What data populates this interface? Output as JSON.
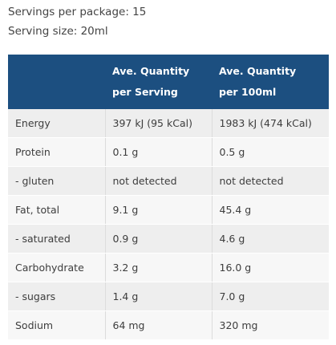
{
  "summary": {
    "servings_per_package": "Servings per package: 15",
    "serving_size": "Serving size: 20ml"
  },
  "table": {
    "header": {
      "blank": "",
      "per_serving_line1": "Ave. Quantity",
      "per_serving_line2": "per Serving",
      "per_100ml_line1": "Ave. Quantity",
      "per_100ml_line2": "per 100ml"
    },
    "rows": [
      {
        "nutrient": "Energy",
        "per_serving": "397 kJ (95 kCal)",
        "per_100ml": "1983 kJ (474 kCal)"
      },
      {
        "nutrient": "Protein",
        "per_serving": "0.1 g",
        "per_100ml": "0.5 g"
      },
      {
        "nutrient": "- gluten",
        "per_serving": "not detected",
        "per_100ml": "not detected"
      },
      {
        "nutrient": "Fat, total",
        "per_serving": "9.1 g",
        "per_100ml": "45.4 g"
      },
      {
        "nutrient": "- saturated",
        "per_serving": "0.9 g",
        "per_100ml": "4.6 g"
      },
      {
        "nutrient": "Carbohydrate",
        "per_serving": "3.2 g",
        "per_100ml": "16.0 g"
      },
      {
        "nutrient": "- sugars",
        "per_serving": "1.4 g",
        "per_100ml": "7.0 g"
      },
      {
        "nutrient": "Sodium",
        "per_serving": "64 mg",
        "per_100ml": "320 mg"
      }
    ]
  },
  "colors": {
    "header_bg": "#1c4f80",
    "row_odd": "#eeeeee",
    "row_even": "#f7f7f7"
  }
}
